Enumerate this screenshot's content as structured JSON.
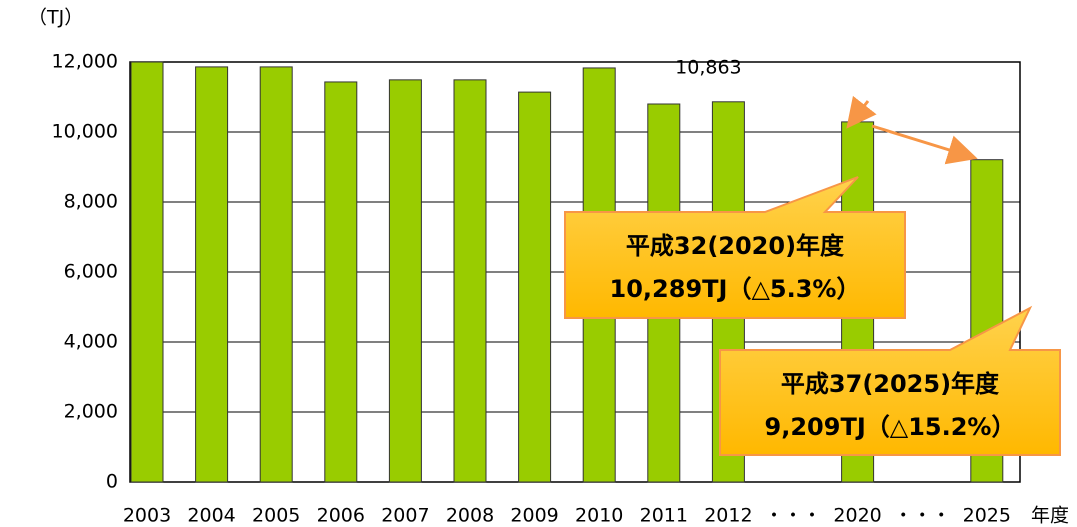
{
  "chart_data": {
    "type": "bar",
    "y_unit": "（TJ）",
    "x_label": "年度",
    "categories": [
      "2003",
      "2004",
      "2005",
      "2006",
      "2007",
      "2008",
      "2009",
      "2010",
      "2011",
      "2012",
      "・・・",
      "2020",
      "・・・",
      "2025"
    ],
    "values": [
      12000,
      11860,
      11860,
      11430,
      11490,
      11490,
      11140,
      11830,
      10800,
      10863,
      null,
      10289,
      null,
      9209
    ],
    "value_labels": [
      null,
      null,
      null,
      null,
      null,
      null,
      null,
      null,
      null,
      "10,863",
      null,
      null,
      null,
      null
    ],
    "color": "#99cc00",
    "ylim": [
      0,
      12000
    ],
    "yticks": [
      0,
      {
        "value": 2000,
        "label": "2,000"
      },
      {
        "value": 4000,
        "label": "4,000"
      },
      {
        "value": 6000,
        "label": "6,000"
      },
      {
        "value": 8000,
        "label": "8,000"
      },
      {
        "value": 10000,
        "label": "10,000"
      },
      {
        "value": 12000,
        "label": "12,000"
      }
    ],
    "grid": true,
    "annotations": [
      "平成32(2020)年度",
      "10,289TJ（△5.3%）",
      "平成37(2025)年度",
      "9,209TJ（△15.2%）"
    ]
  }
}
